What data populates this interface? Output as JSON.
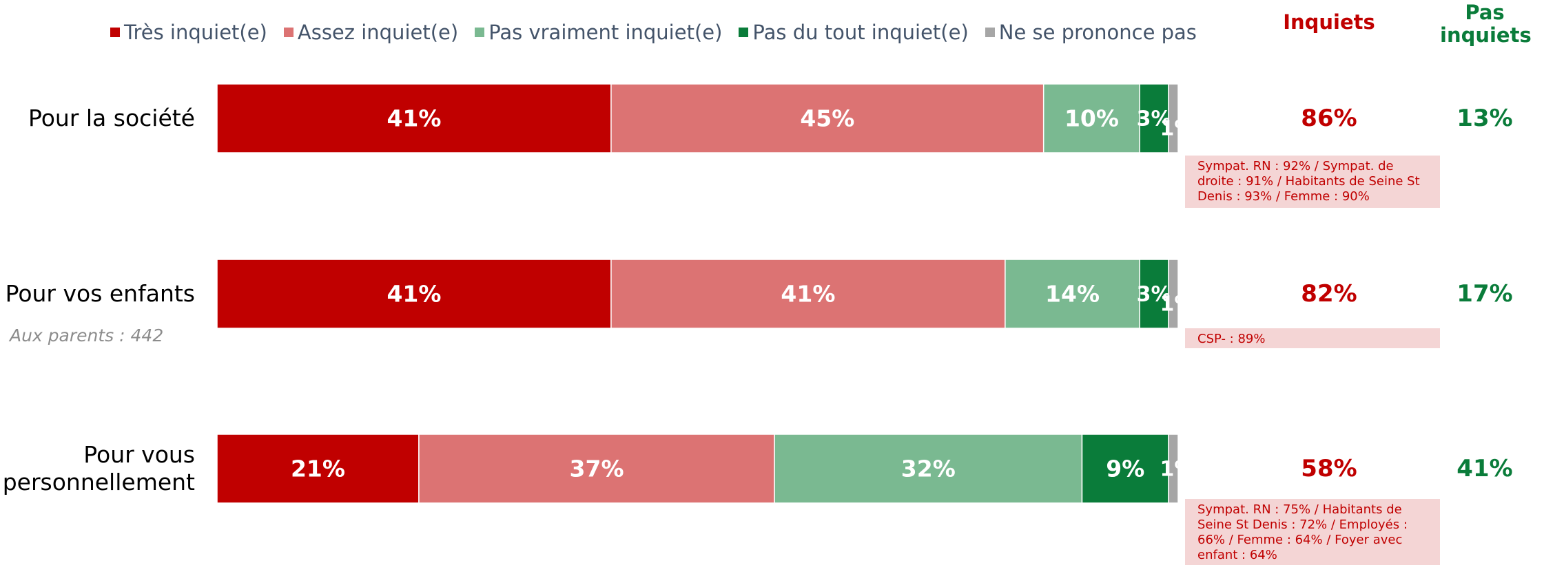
{
  "chart_data": {
    "type": "stacked-bar-horizontal",
    "categories": [
      "Pour la société",
      "Pour vos enfants",
      "Pour vous personnellement"
    ],
    "row_notes": [
      null,
      "Aux parents : 442",
      null
    ],
    "xlim": [
      0,
      100
    ],
    "series": [
      {
        "name": "Très inquiet(e)",
        "color": "#c00000",
        "values": [
          41,
          41,
          21
        ],
        "value_labels": [
          "41%",
          "41%",
          "21%"
        ]
      },
      {
        "name": "Assez inquiet(e)",
        "color": "#dc7373",
        "values": [
          45,
          41,
          37
        ],
        "value_labels": [
          "45%",
          "41%",
          "37%"
        ]
      },
      {
        "name": "Pas vraiment inquiet(e)",
        "color": "#7ab991",
        "values": [
          10,
          14,
          32
        ],
        "value_labels": [
          "10%",
          "14%",
          "32%"
        ]
      },
      {
        "name": "Pas du tout inquiet(e)",
        "color": "#0a7c3a",
        "values": [
          3,
          3,
          9
        ],
        "value_labels": [
          "3%",
          "3%",
          "9%"
        ]
      },
      {
        "name": "Ne se prononce pas",
        "color": "#a6a6a6",
        "values": [
          1,
          1,
          1
        ],
        "value_labels": [
          "1%",
          "1%",
          "1%"
        ]
      }
    ],
    "summary_columns": [
      {
        "name": "Inquiets",
        "color": "#c00000",
        "values": [
          86,
          82,
          58
        ],
        "value_labels": [
          "86%",
          "82%",
          "58%"
        ]
      },
      {
        "name": "Pas inquiets",
        "color": "#0a7c3a",
        "values": [
          13,
          17,
          41
        ],
        "value_labels": [
          "13%",
          "17%",
          "41%"
        ]
      }
    ],
    "highlights": [
      "Sympat. RN : 92% / Sympat. de droite : 91% / Habitants de Seine St Denis : 93% / Femme : 90%",
      "CSP- : 89%",
      "Sympat. RN : 75% / Habitants de Seine St Denis : 72% / Employés : 66% / Femme : 64% / Foyer avec enfant : 64%"
    ]
  }
}
